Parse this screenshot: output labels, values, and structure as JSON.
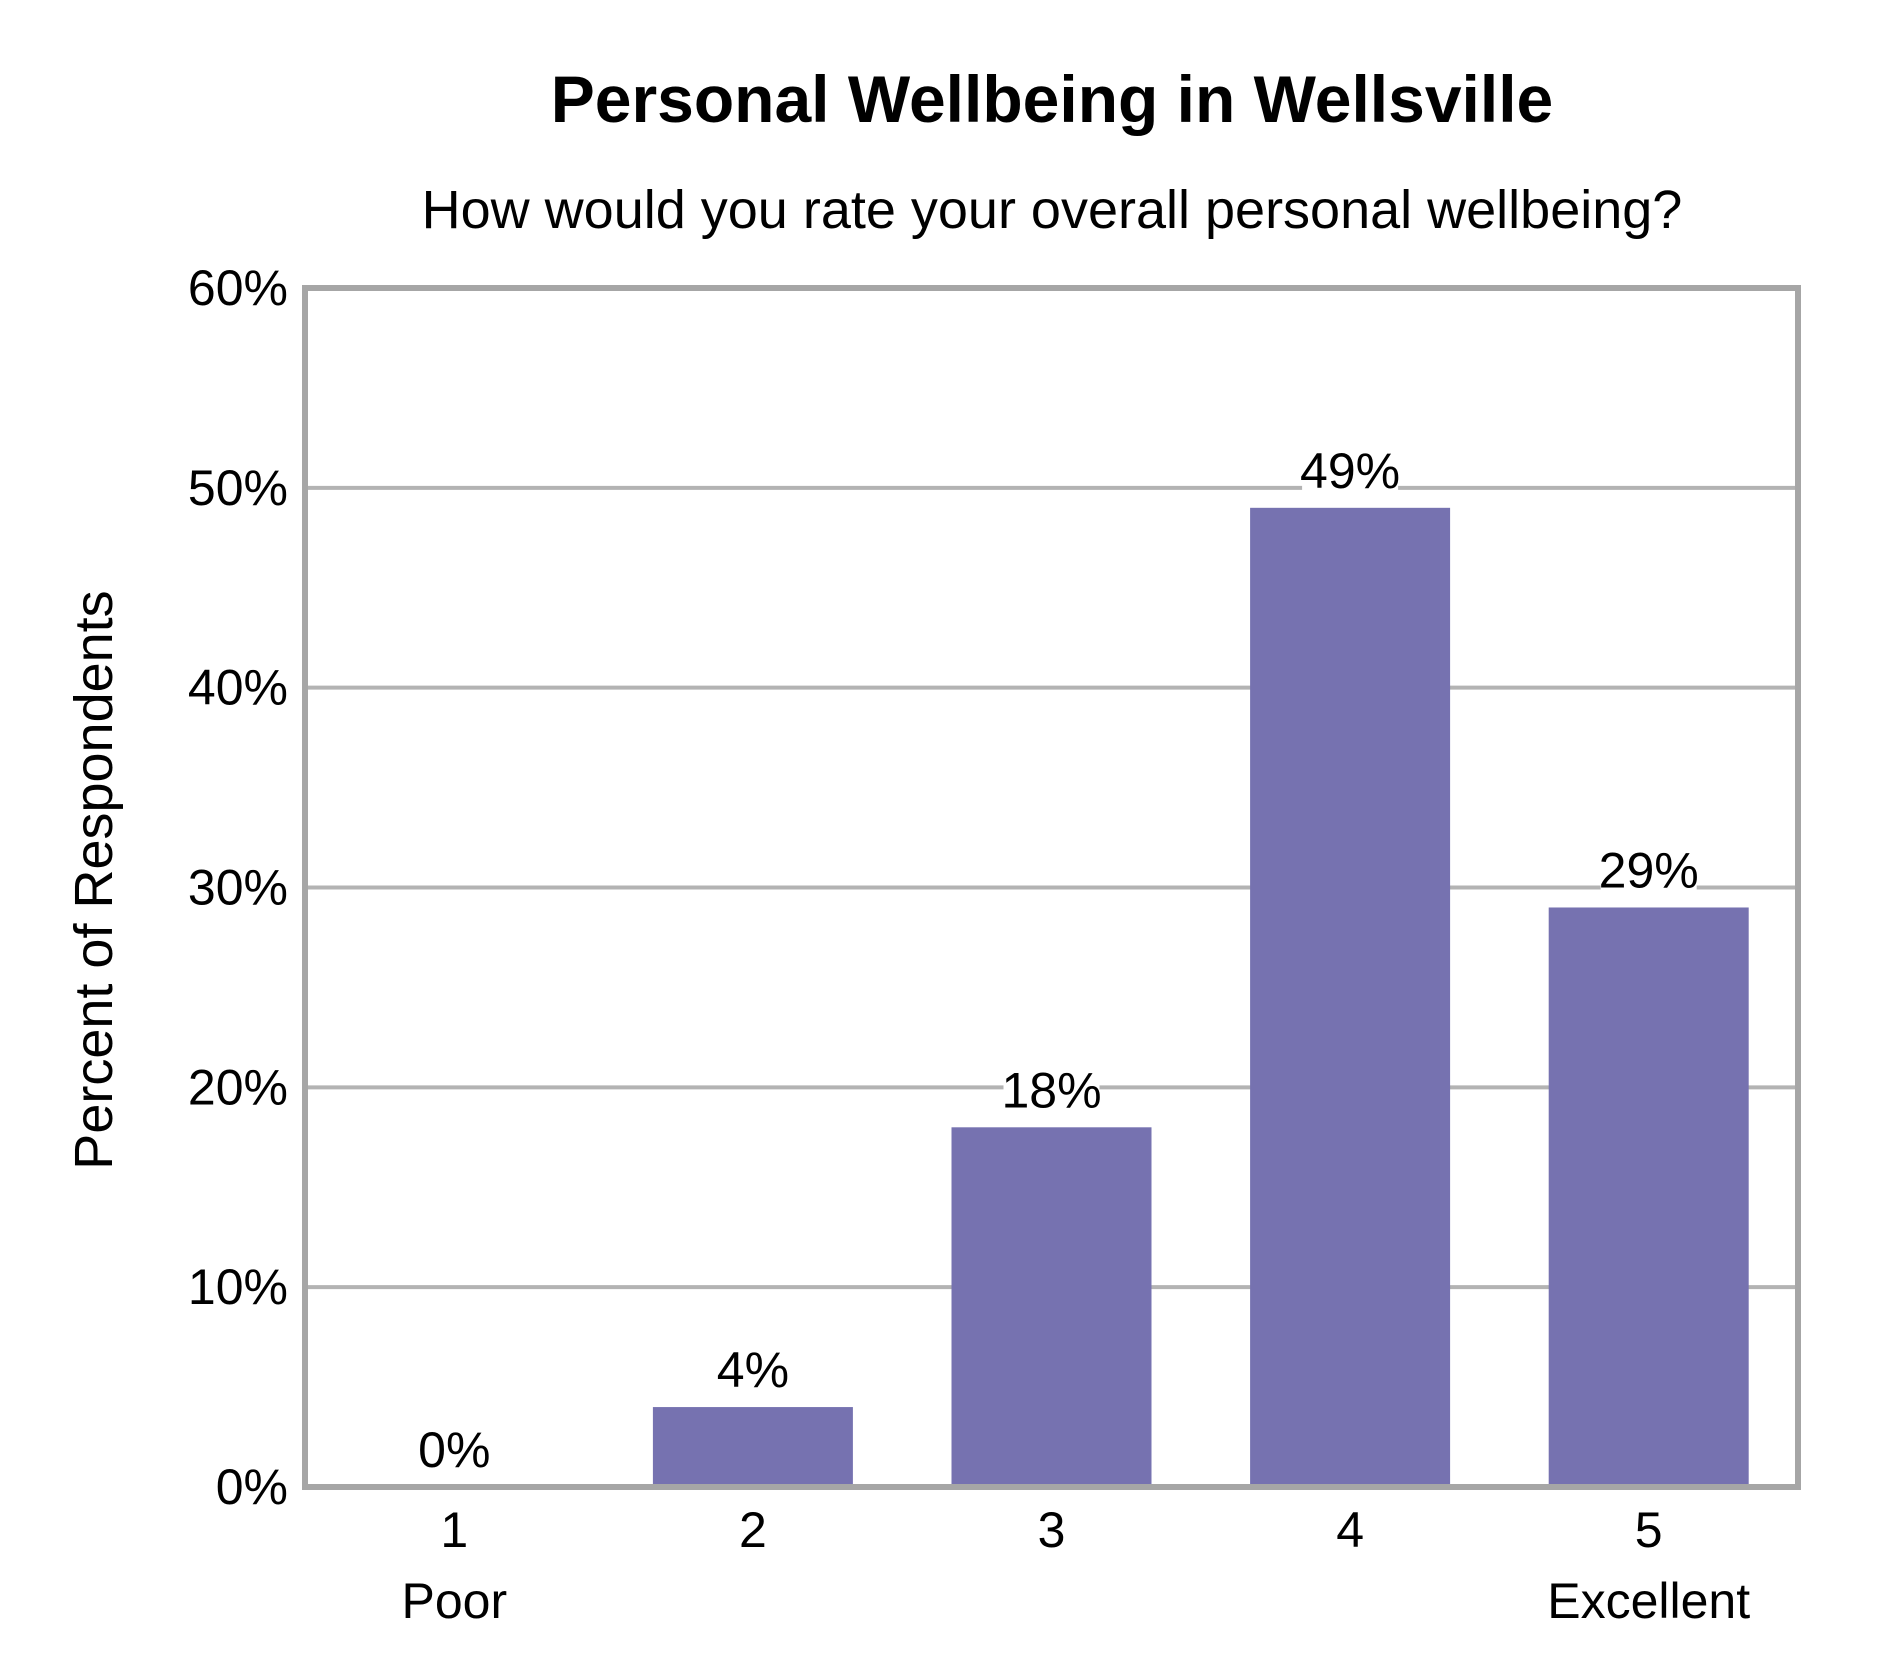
{
  "chart_data": {
    "type": "bar",
    "title": "Personal Wellbeing in Wellsville",
    "subtitle": "How would you rate your overall personal wellbeing?",
    "xlabel": "",
    "ylabel": "Percent of Respondents",
    "categories": [
      "1",
      "2",
      "3",
      "4",
      "5"
    ],
    "category_sublabels": [
      "Poor",
      "",
      "",
      "",
      "Excellent"
    ],
    "values": [
      0,
      4,
      18,
      49,
      29
    ],
    "data_labels": [
      "0%",
      "4%",
      "18%",
      "49%",
      "29%"
    ],
    "ylim": [
      0,
      60
    ],
    "yticks": [
      0,
      10,
      20,
      30,
      40,
      50,
      60
    ],
    "ytick_labels": [
      "0%",
      "10%",
      "20%",
      "30%",
      "40%",
      "50%",
      "60%"
    ],
    "grid": true,
    "legend": "none",
    "colors": {
      "bar": "#7672b0",
      "grid": "#b3b3b3",
      "frame": "#a6a6a6"
    }
  }
}
